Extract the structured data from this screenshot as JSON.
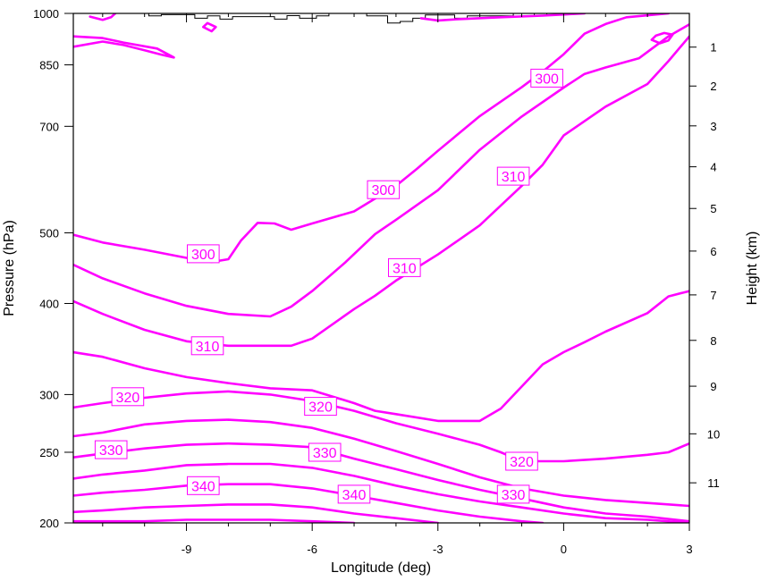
{
  "chart_data": {
    "type": "contour",
    "title": "",
    "xlabel": "Longitude (deg)",
    "ylabel_left": "Pressure (hPa)",
    "ylabel_right": "Height (km)",
    "xlim": [
      -11.7,
      3
    ],
    "ylim_pressure": [
      1000,
      200
    ],
    "left_scale": "log-pressure",
    "line_color": "#ff00ff",
    "terrain_color": "#000000",
    "x_ticks": [
      {
        "value": -9,
        "label": "-9"
      },
      {
        "value": -6,
        "label": "-6"
      },
      {
        "value": -3,
        "label": "-3"
      },
      {
        "value": 0,
        "label": "0"
      },
      {
        "value": 3,
        "label": "3"
      }
    ],
    "pressure_ticks": [
      {
        "value": 200,
        "label": "200"
      },
      {
        "value": 250,
        "label": "250"
      },
      {
        "value": 300,
        "label": "300"
      },
      {
        "value": 400,
        "label": "400"
      },
      {
        "value": 500,
        "label": "500"
      },
      {
        "value": 700,
        "label": "700"
      },
      {
        "value": 850,
        "label": "850"
      },
      {
        "value": 1000,
        "label": "1000"
      }
    ],
    "height_ticks": [
      {
        "value": 1,
        "label": "1",
        "p": 899
      },
      {
        "value": 2,
        "label": "2",
        "p": 795
      },
      {
        "value": 3,
        "label": "3",
        "p": 701
      },
      {
        "value": 4,
        "label": "4",
        "p": 616
      },
      {
        "value": 5,
        "label": "5",
        "p": 540
      },
      {
        "value": 6,
        "label": "6",
        "p": 472
      },
      {
        "value": 7,
        "label": "7",
        "p": 411
      },
      {
        "value": 8,
        "label": "8",
        "p": 356
      },
      {
        "value": 9,
        "label": "9",
        "p": 308
      },
      {
        "value": 10,
        "label": "10",
        "p": 265
      },
      {
        "value": 11,
        "label": "11",
        "p": 227
      }
    ],
    "contours": [
      {
        "level": 300,
        "points": [
          [
            -11.7,
            497
          ],
          [
            -11.0,
            485
          ],
          [
            -10.0,
            474
          ],
          [
            -9.0,
            462
          ],
          [
            -8.4,
            456
          ],
          [
            -8.0,
            460
          ],
          [
            -7.7,
            488
          ],
          [
            -7.3,
            516
          ],
          [
            -6.9,
            515
          ],
          [
            -6.5,
            505
          ],
          [
            -6.0,
            515
          ],
          [
            -5.0,
            535
          ],
          [
            -4.0,
            580
          ],
          [
            -3.5,
            612
          ],
          [
            -3.0,
            648
          ],
          [
            -2.0,
            723
          ],
          [
            -1.0,
            792
          ],
          [
            -0.5,
            832
          ],
          [
            0.0,
            879
          ],
          [
            0.5,
            938
          ],
          [
            1.0,
            967
          ],
          [
            1.5,
            988
          ],
          [
            2.5,
            1000
          ]
        ]
      },
      {
        "level": 310,
        "points": [
          [
            -11.7,
            452
          ],
          [
            -11.0,
            433
          ],
          [
            -10.0,
            413
          ],
          [
            -9.0,
            397
          ],
          [
            -8.0,
            387
          ],
          [
            -7.0,
            384
          ],
          [
            -6.5,
            396
          ],
          [
            -6.0,
            416
          ],
          [
            -5.2,
            456
          ],
          [
            -4.5,
            498
          ],
          [
            -4.0,
            521
          ],
          [
            -3.0,
            572
          ],
          [
            -2.0,
            650
          ],
          [
            -1.0,
            722
          ],
          [
            0.0,
            791
          ],
          [
            0.5,
            826
          ],
          [
            1.0,
            843
          ],
          [
            1.8,
            868
          ],
          [
            2.5,
            930
          ],
          [
            3.0,
            966
          ]
        ]
      },
      {
        "level": 310,
        "points": [
          [
            -11.7,
            403
          ],
          [
            -11.0,
            387
          ],
          [
            -10.0,
            368
          ],
          [
            -9.0,
            355
          ],
          [
            -8.0,
            350
          ],
          [
            -6.5,
            350
          ],
          [
            -6.0,
            358
          ],
          [
            -5.0,
            393
          ],
          [
            -4.5,
            410
          ],
          [
            -4.0,
            430
          ],
          [
            -3.0,
            467
          ],
          [
            -2.0,
            512
          ],
          [
            -1.0,
            580
          ],
          [
            -0.5,
            620
          ],
          [
            0.0,
            680
          ],
          [
            1.0,
            745
          ],
          [
            2.0,
            800
          ],
          [
            2.5,
            860
          ],
          [
            3.0,
            930
          ]
        ]
      },
      {
        "level": 320,
        "points": [
          [
            -11.7,
            343
          ],
          [
            -11.0,
            338
          ],
          [
            -10.0,
            326
          ],
          [
            -9.0,
            317
          ],
          [
            -8.0,
            311
          ],
          [
            -7.0,
            306
          ],
          [
            -6.0,
            304
          ],
          [
            -5.0,
            292
          ],
          [
            -4.5,
            285
          ],
          [
            -4.0,
            282
          ],
          [
            -3.0,
            276
          ],
          [
            -2.0,
            276
          ],
          [
            -1.5,
            287
          ],
          [
            -0.5,
            330
          ],
          [
            0.0,
            343
          ],
          [
            0.5,
            354
          ],
          [
            1.0,
            366
          ],
          [
            2.0,
            388
          ],
          [
            2.5,
            409
          ],
          [
            3.0,
            416
          ]
        ]
      },
      {
        "level": 320,
        "points": [
          [
            -11.7,
            288
          ],
          [
            -11.0,
            292
          ],
          [
            -10.0,
            297
          ],
          [
            -9.0,
            301
          ],
          [
            -8.0,
            303
          ],
          [
            -7.0,
            300
          ],
          [
            -6.0,
            294
          ],
          [
            -5.0,
            285
          ],
          [
            -4.0,
            274
          ],
          [
            -3.0,
            265
          ],
          [
            -2.0,
            256
          ],
          [
            -1.5,
            250
          ],
          [
            -1.0,
            243
          ],
          [
            0.0,
            243
          ],
          [
            1.0,
            245
          ],
          [
            2.0,
            248
          ],
          [
            2.5,
            250
          ],
          [
            3.0,
            257
          ]
        ]
      },
      {
        "level": 330,
        "points": [
          [
            -11.7,
            263
          ],
          [
            -11.0,
            266
          ],
          [
            -10.0,
            273
          ],
          [
            -9.0,
            276
          ],
          [
            -8.0,
            277
          ],
          [
            -7.0,
            275
          ],
          [
            -6.0,
            270
          ],
          [
            -5.0,
            261
          ],
          [
            -4.0,
            251
          ],
          [
            -3.0,
            241
          ],
          [
            -2.0,
            231
          ],
          [
            -1.0,
            223
          ],
          [
            0.0,
            218
          ],
          [
            1.0,
            215
          ],
          [
            2.0,
            213
          ],
          [
            3.0,
            211
          ]
        ]
      },
      {
        "level": 330,
        "points": [
          [
            -11.7,
            246
          ],
          [
            -11.0,
            249
          ],
          [
            -10.0,
            253
          ],
          [
            -9.0,
            256
          ],
          [
            -8.0,
            257
          ],
          [
            -7.0,
            256
          ],
          [
            -6.0,
            254
          ],
          [
            -5.0,
            245
          ],
          [
            -4.0,
            237
          ],
          [
            -3.0,
            229
          ],
          [
            -2.0,
            222
          ],
          [
            -1.0,
            216
          ],
          [
            0.0,
            210
          ],
          [
            1.0,
            206
          ],
          [
            2.0,
            204
          ],
          [
            3.0,
            201
          ]
        ]
      },
      {
        "level": 340,
        "points": [
          [
            -11.7,
            230
          ],
          [
            -11.0,
            233
          ],
          [
            -10.0,
            236
          ],
          [
            -9.0,
            240
          ],
          [
            -8.0,
            241
          ],
          [
            -7.0,
            241
          ],
          [
            -6.0,
            238
          ],
          [
            -5.0,
            232
          ],
          [
            -4.0,
            225
          ],
          [
            -3.0,
            219
          ],
          [
            -2.0,
            214
          ],
          [
            -1.0,
            210
          ],
          [
            0.0,
            206
          ],
          [
            1.0,
            203
          ],
          [
            2.0,
            202
          ],
          [
            3.0,
            200
          ]
        ]
      },
      {
        "level": 340,
        "points": [
          [
            -11.7,
            218
          ],
          [
            -11.0,
            220
          ],
          [
            -10.0,
            222
          ],
          [
            -9.0,
            225
          ],
          [
            -8.0,
            226
          ],
          [
            -7.0,
            226
          ],
          [
            -6.0,
            223
          ],
          [
            -5.0,
            218
          ],
          [
            -4.0,
            213
          ],
          [
            -3.0,
            208
          ],
          [
            -2.0,
            204
          ],
          [
            -1.0,
            201
          ],
          [
            -0.5,
            200
          ]
        ]
      },
      {
        "level": 340,
        "points": [
          [
            -11.7,
            207
          ],
          [
            -11.0,
            208
          ],
          [
            -10.0,
            210
          ],
          [
            -9.0,
            211
          ],
          [
            -8.0,
            212
          ],
          [
            -7.0,
            212
          ],
          [
            -6.0,
            210
          ],
          [
            -5.0,
            206
          ],
          [
            -4.0,
            203
          ],
          [
            -3.0,
            200
          ]
        ]
      },
      {
        "level": 340,
        "points": [
          [
            -11.7,
            201
          ],
          [
            -11.0,
            201
          ],
          [
            -10.0,
            201
          ],
          [
            -9.0,
            202
          ],
          [
            -8.0,
            202
          ],
          [
            -7.0,
            202
          ],
          [
            -6.0,
            201
          ],
          [
            -5.0,
            200
          ]
        ]
      },
      {
        "level": 300,
        "points": [
          [
            -11.7,
            900
          ],
          [
            -11.0,
            915
          ],
          [
            -10.5,
            905
          ],
          [
            -10.0,
            890
          ],
          [
            -9.6,
            878
          ],
          [
            -9.3,
            870
          ],
          [
            -9.7,
            895
          ],
          [
            -10.5,
            912
          ],
          [
            -11.0,
            925
          ],
          [
            -11.7,
            930
          ]
        ]
      },
      {
        "level": 300,
        "points": [
          [
            -11.3,
            990
          ],
          [
            -11.0,
            980
          ],
          [
            -10.8,
            988
          ],
          [
            -10.7,
            1000
          ]
        ]
      },
      {
        "level": 300,
        "points": [
          [
            -8.6,
            958
          ],
          [
            -8.4,
            945
          ],
          [
            -8.3,
            958
          ],
          [
            -8.5,
            970
          ],
          [
            -8.6,
            958
          ]
        ]
      },
      {
        "level": 300,
        "points": [
          [
            2.1,
            920
          ],
          [
            2.3,
            910
          ],
          [
            2.5,
            918
          ],
          [
            2.6,
            935
          ],
          [
            2.4,
            940
          ],
          [
            2.2,
            932
          ],
          [
            2.1,
            920
          ]
        ]
      },
      {
        "level": 300,
        "points": [
          [
            -3.4,
            985
          ],
          [
            -3.0,
            978
          ],
          [
            -2.5,
            982
          ],
          [
            -1.5,
            988
          ],
          [
            -0.5,
            993
          ],
          [
            0.5,
            1000
          ]
        ]
      }
    ],
    "terrain": [
      [
        -9.9,
        1000
      ],
      [
        -9.9,
        992
      ],
      [
        -9.6,
        992
      ],
      [
        -9.6,
        996
      ],
      [
        -8.8,
        996
      ],
      [
        -8.8,
        985
      ],
      [
        -8.5,
        985
      ],
      [
        -8.5,
        992
      ],
      [
        -8.2,
        992
      ],
      [
        -8.2,
        982
      ],
      [
        -7.9,
        982
      ],
      [
        -7.9,
        990
      ],
      [
        -6.9,
        990
      ],
      [
        -6.9,
        982
      ],
      [
        -6.6,
        982
      ],
      [
        -6.6,
        993
      ],
      [
        -6.3,
        993
      ],
      [
        -6.3,
        985
      ],
      [
        -5.9,
        985
      ],
      [
        -5.9,
        992
      ],
      [
        -5.6,
        992
      ],
      [
        -5.6,
        1000
      ],
      [
        -4.7,
        1000
      ],
      [
        -4.7,
        992
      ],
      [
        -4.2,
        992
      ],
      [
        -4.2,
        970
      ],
      [
        -3.9,
        970
      ],
      [
        -3.9,
        975
      ],
      [
        -3.6,
        975
      ],
      [
        -3.6,
        985
      ],
      [
        -3.3,
        985
      ],
      [
        -3.3,
        995
      ],
      [
        -2.6,
        995
      ],
      [
        -2.6,
        985
      ],
      [
        -2.3,
        985
      ],
      [
        -2.3,
        992
      ],
      [
        -1.2,
        992
      ],
      [
        -1.2,
        1000
      ],
      [
        -0.7,
        1000
      ],
      [
        -0.7,
        992
      ],
      [
        -0.4,
        992
      ],
      [
        -0.4,
        1000
      ]
    ],
    "contour_labels": [
      {
        "text": "300",
        "x": -8.6,
        "p": 468
      },
      {
        "text": "300",
        "x": -4.3,
        "p": 573
      },
      {
        "text": "300",
        "x": -0.4,
        "p": 815
      },
      {
        "text": "310",
        "x": -8.5,
        "p": 350
      },
      {
        "text": "310",
        "x": -3.8,
        "p": 448
      },
      {
        "text": "310",
        "x": -1.2,
        "p": 598
      },
      {
        "text": "320",
        "x": -10.4,
        "p": 298
      },
      {
        "text": "320",
        "x": -5.8,
        "p": 289
      },
      {
        "text": "320",
        "x": -1.0,
        "p": 243
      },
      {
        "text": "330",
        "x": -10.8,
        "p": 252
      },
      {
        "text": "330",
        "x": -5.7,
        "p": 250
      },
      {
        "text": "330",
        "x": -1.2,
        "p": 219
      },
      {
        "text": "340",
        "x": -8.6,
        "p": 225
      },
      {
        "text": "340",
        "x": -5.0,
        "p": 219
      }
    ]
  }
}
